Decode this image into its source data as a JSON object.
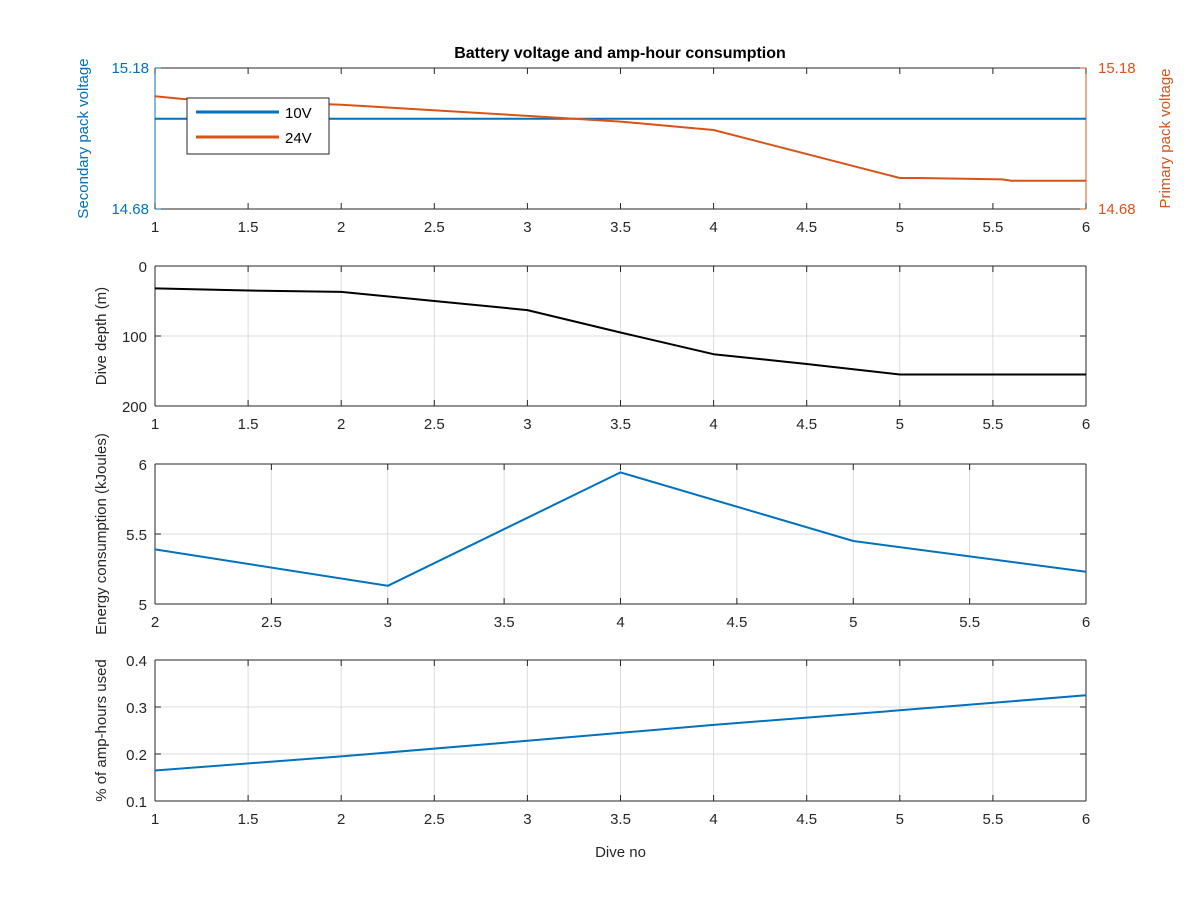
{
  "figure": {
    "title": "Battery voltage and amp-hour consumption",
    "colors": {
      "blue": "#0072BD",
      "orange": "#D95319",
      "axis": "#262626",
      "grid": "#dcdcdc",
      "black": "#000000"
    }
  },
  "chart_data": [
    {
      "type": "line",
      "ylabel": "Secondary pack voltage",
      "ylabel_right": "Primary pack voltage",
      "xlabel": "",
      "xlim": [
        1,
        6
      ],
      "ylim": [
        14.68,
        15.18
      ],
      "ylim_right": [
        14.68,
        15.18
      ],
      "xticks": [
        "1",
        "1.5",
        "2",
        "2.5",
        "3",
        "3.5",
        "4",
        "4.5",
        "5",
        "5.5",
        "6"
      ],
      "yticks_left": [
        "14.68",
        "15.18"
      ],
      "yticks_right": [
        "14.68",
        "15.18"
      ],
      "grid": false,
      "legend": "top-left",
      "series": [
        {
          "name": "10V",
          "axis": "left",
          "color": "#0072BD",
          "x": [
            1,
            6
          ],
          "y": [
            15.0,
            15.0
          ]
        },
        {
          "name": "24V",
          "axis": "right",
          "color": "#D95319",
          "x": [
            1,
            1.15,
            2,
            3,
            3.5,
            4,
            5,
            5.1,
            5.55,
            5.6,
            6
          ],
          "y": [
            15.08,
            15.07,
            15.05,
            15.01,
            14.99,
            14.96,
            14.79,
            14.79,
            14.785,
            14.78,
            14.78
          ]
        }
      ]
    },
    {
      "type": "line",
      "ylabel": "Dive depth (m)",
      "xlabel": "",
      "xlim": [
        1,
        6
      ],
      "ylim": [
        0,
        200
      ],
      "y_reversed": true,
      "xticks": [
        "1",
        "1.5",
        "2",
        "2.5",
        "3",
        "3.5",
        "4",
        "4.5",
        "5",
        "5.5",
        "6"
      ],
      "yticks": [
        "0",
        "100",
        "200"
      ],
      "grid": true,
      "series": [
        {
          "color": "#000000",
          "x": [
            1,
            1.5,
            2,
            2.5,
            3,
            3.5,
            4,
            4.5,
            5,
            5.5,
            6
          ],
          "y": [
            32,
            35,
            37,
            50,
            63,
            95,
            126,
            140,
            155,
            155,
            155
          ]
        }
      ]
    },
    {
      "type": "line",
      "ylabel": "Energy consumption (kJoules)",
      "xlabel": "",
      "xlim": [
        2,
        6
      ],
      "ylim": [
        5,
        6
      ],
      "xticks": [
        "2",
        "2.5",
        "3",
        "3.5",
        "4",
        "4.5",
        "5",
        "5.5",
        "6"
      ],
      "yticks": [
        "5",
        "5.5",
        "6"
      ],
      "grid": true,
      "series": [
        {
          "color": "#0072BD",
          "x": [
            2,
            3,
            4,
            5,
            6
          ],
          "y": [
            5.39,
            5.13,
            5.94,
            5.45,
            5.23
          ]
        }
      ]
    },
    {
      "type": "line",
      "ylabel": "% of amp-hours used",
      "xlabel": "Dive no",
      "xlim": [
        1,
        6
      ],
      "ylim": [
        0.1,
        0.4
      ],
      "xticks": [
        "1",
        "1.5",
        "2",
        "2.5",
        "3",
        "3.5",
        "4",
        "4.5",
        "5",
        "5.5",
        "6"
      ],
      "yticks": [
        "0.1",
        "0.2",
        "0.3",
        "0.4"
      ],
      "grid": true,
      "series": [
        {
          "color": "#0072BD",
          "x": [
            1,
            2,
            3,
            4,
            5,
            6
          ],
          "y": [
            0.165,
            0.195,
            0.228,
            0.262,
            0.293,
            0.325
          ]
        }
      ]
    }
  ]
}
